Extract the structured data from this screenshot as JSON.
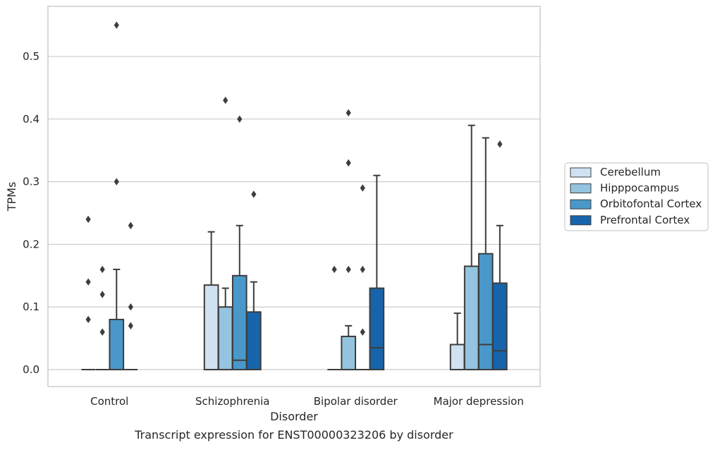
{
  "chart_data": {
    "type": "box",
    "title": "",
    "caption": "Transcript expression for ENST00000323206 by disorder",
    "xlabel": "Disorder",
    "ylabel": "TPMs",
    "ylim": [
      -0.027,
      0.58
    ],
    "yticks": [
      0.0,
      0.1,
      0.2,
      0.3,
      0.4,
      0.5
    ],
    "ytick_labels": [
      "0.0",
      "0.1",
      "0.2",
      "0.3",
      "0.4",
      "0.5"
    ],
    "grid": "horizontal",
    "legend_position": "right",
    "categories": [
      "Control",
      "Schizophrenia",
      "Bipolar disorder",
      "Major depression"
    ],
    "series": [
      {
        "name": "Cerebellum",
        "color": "#d0e1f2",
        "boxes": [
          {
            "q1": 0.0,
            "median": 0.0,
            "q3": 0.0,
            "whisker_low": 0.0,
            "whisker_high": 0.0,
            "outliers": [
              0.24,
              0.14,
              0.08
            ]
          },
          {
            "q1": 0.0,
            "median": 0.0,
            "q3": 0.135,
            "whisker_low": 0.0,
            "whisker_high": 0.22,
            "outliers": []
          },
          {
            "q1": 0.0,
            "median": 0.0,
            "q3": 0.0,
            "whisker_low": 0.0,
            "whisker_high": 0.0,
            "outliers": [
              0.16
            ]
          },
          {
            "q1": 0.0,
            "median": 0.0,
            "q3": 0.04,
            "whisker_low": 0.0,
            "whisker_high": 0.09,
            "outliers": []
          }
        ]
      },
      {
        "name": "Hipppocampus",
        "color": "#94c4df",
        "boxes": [
          {
            "q1": 0.0,
            "median": 0.0,
            "q3": 0.0,
            "whisker_low": 0.0,
            "whisker_high": 0.0,
            "outliers": [
              0.16,
              0.12,
              0.06
            ]
          },
          {
            "q1": 0.0,
            "median": 0.0,
            "q3": 0.1,
            "whisker_low": 0.0,
            "whisker_high": 0.13,
            "outliers": [
              0.43
            ]
          },
          {
            "q1": 0.0,
            "median": 0.0,
            "q3": 0.053,
            "whisker_low": 0.0,
            "whisker_high": 0.07,
            "outliers": [
              0.41,
              0.33,
              0.16
            ]
          },
          {
            "q1": 0.0,
            "median": 0.0,
            "q3": 0.165,
            "whisker_low": 0.0,
            "whisker_high": 0.39,
            "outliers": []
          }
        ]
      },
      {
        "name": "Orbitofontal Cortex",
        "color": "#4a98c9",
        "boxes": [
          {
            "q1": 0.0,
            "median": 0.0,
            "q3": 0.08,
            "whisker_low": 0.0,
            "whisker_high": 0.16,
            "outliers": [
              0.55,
              0.3
            ]
          },
          {
            "q1": 0.0,
            "median": 0.015,
            "q3": 0.15,
            "whisker_low": 0.0,
            "whisker_high": 0.23,
            "outliers": [
              0.4
            ]
          },
          {
            "q1": 0.0,
            "median": 0.0,
            "q3": 0.0,
            "whisker_low": 0.0,
            "whisker_high": 0.0,
            "outliers": [
              0.29,
              0.16,
              0.06
            ]
          },
          {
            "q1": 0.0,
            "median": 0.04,
            "q3": 0.185,
            "whisker_low": 0.0,
            "whisker_high": 0.37,
            "outliers": []
          }
        ]
      },
      {
        "name": "Prefrontal Cortex",
        "color": "#1764ab",
        "boxes": [
          {
            "q1": 0.0,
            "median": 0.0,
            "q3": 0.0,
            "whisker_low": 0.0,
            "whisker_high": 0.0,
            "outliers": [
              0.23,
              0.1,
              0.07
            ]
          },
          {
            "q1": 0.0,
            "median": 0.0,
            "q3": 0.092,
            "whisker_low": 0.0,
            "whisker_high": 0.14,
            "outliers": [
              0.28
            ]
          },
          {
            "q1": 0.0,
            "median": 0.035,
            "q3": 0.13,
            "whisker_low": 0.0,
            "whisker_high": 0.31,
            "outliers": []
          },
          {
            "q1": 0.0,
            "median": 0.03,
            "q3": 0.138,
            "whisker_low": 0.0,
            "whisker_high": 0.23,
            "outliers": [
              0.36
            ]
          }
        ]
      }
    ],
    "legend": [
      "Cerebellum",
      "Hipppocampus",
      "Orbitofontal Cortex",
      "Prefrontal Cortex"
    ],
    "colors": {
      "background": "#ffffff",
      "grid": "#cccccc",
      "frame": "#cccccc",
      "box_edge": "#3d3d3d",
      "text": "#262626"
    }
  }
}
